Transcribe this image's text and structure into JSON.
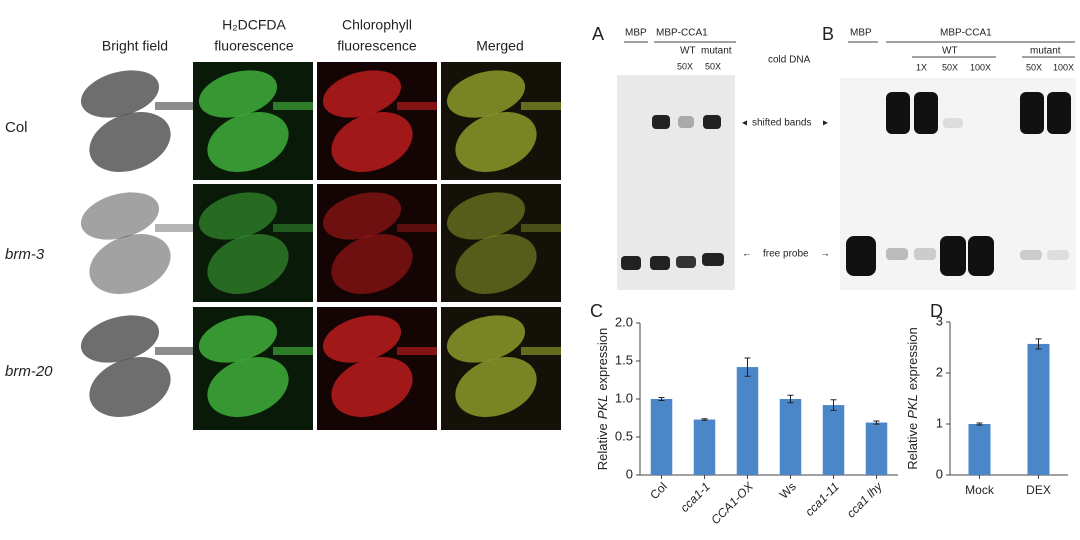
{
  "left": {
    "columns": [
      [
        "Bright field"
      ],
      [
        "H₂DCFDA",
        "fluorescence"
      ],
      [
        "Chlorophyll",
        "fluorescence"
      ],
      [
        "Merged"
      ]
    ],
    "rows": [
      "Col",
      "brm-3",
      "brm-20"
    ]
  },
  "gel_a": {
    "letter": "A",
    "lanes": [
      "MBP",
      "MBP-CCA1"
    ],
    "groups": [
      "WT",
      "mutant"
    ],
    "doses": [
      "50X",
      "50X"
    ],
    "cold_dna": "cold DNA",
    "shifted": "shifted bands",
    "free": "free probe"
  },
  "gel_b": {
    "letter": "B",
    "lanes": [
      "MBP",
      "MBP-CCA1"
    ],
    "groups": [
      "WT",
      "mutant"
    ],
    "doses": [
      "1X",
      "50X",
      "100X",
      "50X",
      "100X"
    ]
  },
  "chart_data": [
    {
      "type": "bar",
      "panel": "C",
      "ylabel": [
        "Relative",
        "PKL",
        "expression"
      ],
      "categories": [
        "Col",
        "cca1-1",
        "CCA1-OX",
        "Ws",
        "cca1-11",
        "cca1 lhy"
      ],
      "values": [
        1.0,
        0.73,
        1.42,
        1.0,
        0.92,
        0.69
      ],
      "errors": [
        0.02,
        0.01,
        0.12,
        0.05,
        0.07,
        0.02
      ],
      "color": "#4a86c8",
      "ylim": [
        0,
        2
      ],
      "yticks": [
        0,
        0.5,
        {
          "value": 1,
          "label": "1.0"
        },
        1.5,
        {
          "value": 2,
          "label": "2.0"
        }
      ]
    },
    {
      "type": "bar",
      "panel": "D",
      "ylabel": [
        "Relative",
        "PKL",
        "expression"
      ],
      "categories": [
        "Mock",
        "DEX"
      ],
      "values": [
        1.0,
        2.57
      ],
      "errors": [
        0.02,
        0.1
      ],
      "color": "#4a86c8",
      "ylim": [
        0,
        3
      ],
      "yticks": [
        0,
        1,
        2,
        3
      ]
    }
  ]
}
